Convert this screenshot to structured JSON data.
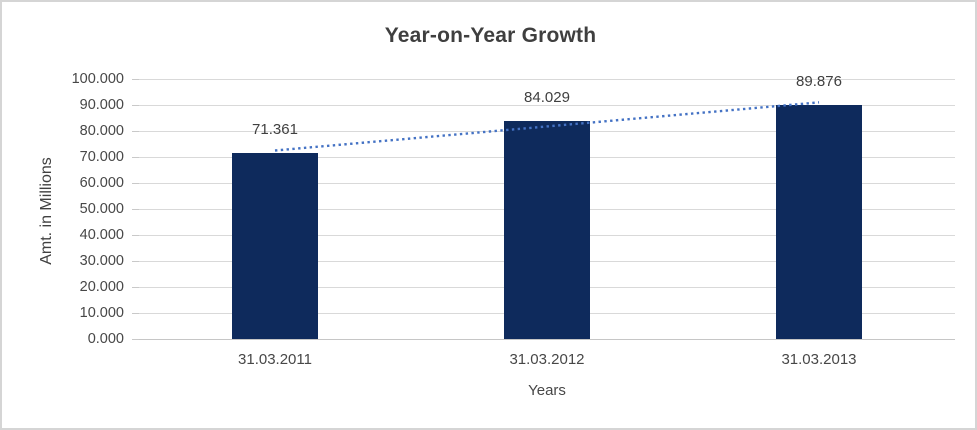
{
  "window": {
    "background": "#FFFFFF",
    "border_color": "#D5D5D5"
  },
  "chart_data": {
    "type": "bar",
    "title": "Year-on-Year Growth",
    "categories": [
      "31.03.2011",
      "31.03.2012",
      "31.03.2013"
    ],
    "values": [
      71.361,
      84.029,
      89.876
    ],
    "value_labels": [
      "71.361",
      "84.029",
      "89.876"
    ],
    "xlabel": "Years",
    "ylabel": "Amt. in Millions",
    "ylim": [
      0,
      100
    ],
    "ytick_step": 10,
    "ytick_labels": [
      "0.000",
      "10.000",
      "20.000",
      "30.000",
      "40.000",
      "50.000",
      "60.000",
      "70.000",
      "80.000",
      "90.000",
      "100.000"
    ],
    "grid": true,
    "legend": "none",
    "bar_color": "#0E2A5C",
    "gridline_color": "#D9D9D9",
    "axis_line_color": "#C6C6C6",
    "text_color": "#404040",
    "trendline": {
      "type": "linear",
      "style": "dotted",
      "color": "#4472C4"
    }
  }
}
